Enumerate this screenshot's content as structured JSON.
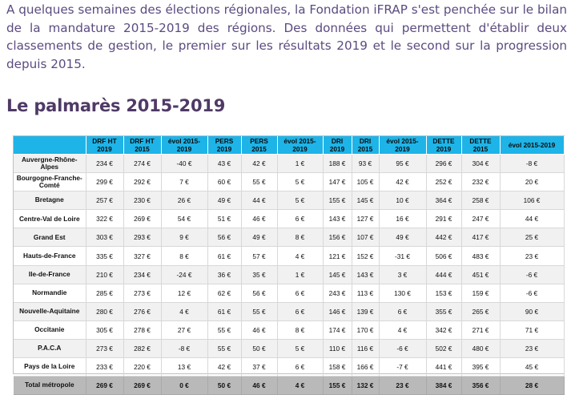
{
  "intro_text": "A quelques semaines des élections régionales, la Fondation iFRAP s'est penchée sur le bilan de la mandature 2015-2019 des régions. Des données qui permettent d'établir deux classements de gestion, le premier sur les résultats 2019 et le second sur la progression depuis 2015.",
  "heading": "Le palmarès 2015-2019",
  "table": {
    "headers": [
      "",
      "DRF HT 2019",
      "DRF HT 2015",
      "évol 2015-2019",
      "PERS 2019",
      "PERS 2015",
      "évol 2015-2019",
      "DRI 2019",
      "DRI 2015",
      "évol 2015-2019",
      "DETTE 2019",
      "DETTE 2015",
      "évol 2015-2019"
    ],
    "rows": [
      [
        "Auvergne-Rhône-Alpes",
        "234 €",
        "274 €",
        "-40 €",
        "43 €",
        "42 €",
        "1 €",
        "188 €",
        "93 €",
        "95 €",
        "296 €",
        "304 €",
        "-8 €"
      ],
      [
        "Bourgogne-Franche-Comté",
        "299 €",
        "292 €",
        "7 €",
        "60 €",
        "55 €",
        "5 €",
        "147 €",
        "105 €",
        "42 €",
        "252 €",
        "232 €",
        "20 €"
      ],
      [
        "Bretagne",
        "257 €",
        "230 €",
        "26 €",
        "49 €",
        "44 €",
        "5 €",
        "155 €",
        "145 €",
        "10 €",
        "364 €",
        "258 €",
        "106 €"
      ],
      [
        "Centre-Val de Loire",
        "322 €",
        "269 €",
        "54 €",
        "51 €",
        "46 €",
        "6 €",
        "143 €",
        "127 €",
        "16 €",
        "291 €",
        "247 €",
        "44 €"
      ],
      [
        "Grand Est",
        "303 €",
        "293 €",
        "9 €",
        "56 €",
        "49 €",
        "8 €",
        "156 €",
        "107 €",
        "49 €",
        "442 €",
        "417 €",
        "25 €"
      ],
      [
        "Hauts-de-France",
        "335 €",
        "327 €",
        "8 €",
        "61 €",
        "57 €",
        "4 €",
        "121 €",
        "152 €",
        "-31 €",
        "506 €",
        "483 €",
        "23 €"
      ],
      [
        "Ile-de-France",
        "210 €",
        "234 €",
        "-24 €",
        "36 €",
        "35 €",
        "1 €",
        "145 €",
        "143 €",
        "3 €",
        "444 €",
        "451 €",
        "-6 €"
      ],
      [
        "Normandie",
        "285 €",
        "273 €",
        "12 €",
        "62 €",
        "56 €",
        "6 €",
        "243 €",
        "113 €",
        "130 €",
        "153 €",
        "159 €",
        "-6 €"
      ],
      [
        "Nouvelle-Aquitaine",
        "280 €",
        "276 €",
        "4 €",
        "61 €",
        "55 €",
        "6 €",
        "146 €",
        "139 €",
        "6 €",
        "355 €",
        "265 €",
        "90 €"
      ],
      [
        "Occitanie",
        "305 €",
        "278 €",
        "27 €",
        "55 €",
        "46 €",
        "8 €",
        "174 €",
        "170 €",
        "4 €",
        "342 €",
        "271 €",
        "71 €"
      ],
      [
        "P.A.C.A",
        "273 €",
        "282 €",
        "-8 €",
        "55 €",
        "50 €",
        "5 €",
        "110 €",
        "116 €",
        "-6 €",
        "502 €",
        "480 €",
        "23 €"
      ],
      [
        "Pays de la Loire",
        "233 €",
        "220 €",
        "13 €",
        "42 €",
        "37 €",
        "6 €",
        "158 €",
        "166 €",
        "-7 €",
        "441 €",
        "395 €",
        "45 €"
      ]
    ],
    "total": [
      "Total métropole",
      "269 €",
      "269 €",
      "0 €",
      "50 €",
      "46 €",
      "4 €",
      "155 €",
      "132 €",
      "23 €",
      "384 €",
      "356 €",
      "28 €"
    ]
  }
}
